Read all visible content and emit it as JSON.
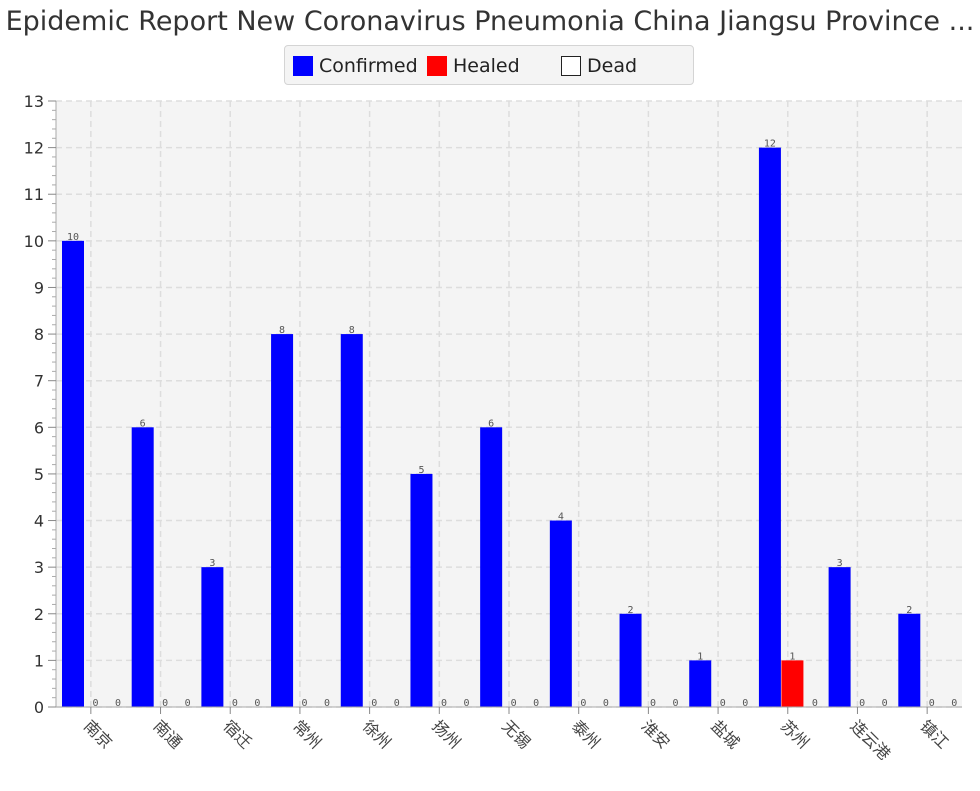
{
  "chart_data": {
    "type": "bar",
    "title": "Epidemic Report New Coronavirus Pneumonia China Jiangsu Province ...",
    "xlabel": "",
    "ylabel": "",
    "categories": [
      "南京",
      "南通",
      "宿迁",
      "常州",
      "徐州",
      "扬州",
      "无锡",
      "泰州",
      "淮安",
      "盐城",
      "苏州",
      "连云港",
      "镇江"
    ],
    "series": [
      {
        "name": "Confirmed",
        "color": "#0000ff",
        "values": [
          10,
          6,
          3,
          8,
          8,
          5,
          6,
          4,
          2,
          1,
          12,
          3,
          2
        ]
      },
      {
        "name": "Healed",
        "color": "#ff0000",
        "values": [
          0,
          0,
          0,
          0,
          0,
          0,
          0,
          0,
          0,
          0,
          1,
          0,
          0
        ]
      },
      {
        "name": "Dead",
        "color": "#ffffff",
        "values": [
          0,
          0,
          0,
          0,
          0,
          0,
          0,
          0,
          0,
          0,
          0,
          0,
          0
        ]
      }
    ],
    "ylim": [
      0,
      13
    ],
    "yticks": [
      0,
      1,
      2,
      3,
      4,
      5,
      6,
      7,
      8,
      9,
      10,
      11,
      12,
      13
    ],
    "grid": true,
    "legend_position": "top-center",
    "data_labels": true
  }
}
